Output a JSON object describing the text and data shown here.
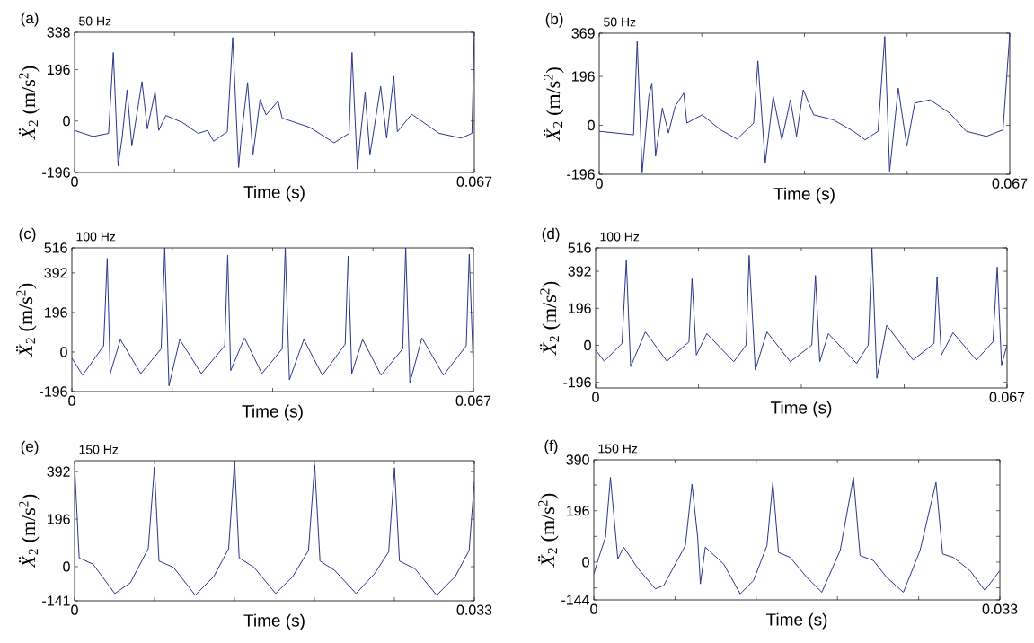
{
  "chart_data": [
    {
      "type": "line",
      "title": "(a)",
      "subtitle": "50 Hz",
      "xlabel": "Time (s)",
      "ylabel": "*Ẍ*$_{2}$  (m/s$^{2}$)",
      "color": "#27348b",
      "xlim": [
        0,
        0.067
      ],
      "ylim": [
        -196,
        338
      ],
      "xticks": [
        0,
        {
          "value": 0.01675,
          "label": null
        },
        {
          "value": 0.0335,
          "label": null
        },
        {
          "value": 0.05025,
          "label": null
        },
        0.067
      ],
      "yticks": [
        -196,
        0,
        196,
        338
      ],
      "x": [
        0,
        0.0031,
        0.0057,
        0.0065,
        0.0073,
        0.008,
        0.0088,
        0.0096,
        0.0113,
        0.0122,
        0.0135,
        0.0141,
        0.0153,
        0.0181,
        0.0207,
        0.0223,
        0.0233,
        0.0256,
        0.0265,
        0.0275,
        0.028,
        0.029,
        0.0299,
        0.0311,
        0.0321,
        0.0341,
        0.0348,
        0.0394,
        0.0435,
        0.046,
        0.0465,
        0.0474,
        0.0479,
        0.0487,
        0.0495,
        0.0513,
        0.0523,
        0.0535,
        0.0541,
        0.0565,
        0.0611,
        0.0648,
        0.0666,
        0.067
      ],
      "values": [
        -36,
        -59,
        -47,
        261,
        -171,
        -59,
        118,
        -95,
        150,
        -30,
        112,
        -36,
        21,
        -6,
        -47,
        -36,
        -77,
        -41,
        318,
        -177,
        -47,
        147,
        -130,
        82,
        23,
        76,
        11,
        -24,
        -83,
        -47,
        261,
        -183,
        -59,
        108,
        -130,
        132,
        -65,
        171,
        -41,
        26,
        -47,
        -65,
        -47,
        336
      ]
    },
    {
      "type": "line",
      "title": "(b)",
      "subtitle": "50 Hz",
      "xlabel": "Time (s)",
      "ylabel": "*Ẍ*$_{2}$  (m/s$^{2}$)",
      "color": "#27348b",
      "xlim": [
        0,
        0.067
      ],
      "ylim": [
        -196,
        369
      ],
      "xticks": [
        0,
        {
          "value": 0.01675,
          "label": null
        },
        {
          "value": 0.0335,
          "label": null
        },
        {
          "value": 0.05025,
          "label": null
        },
        0.067
      ],
      "yticks": [
        -196,
        0,
        196,
        369
      ],
      "x": [
        0,
        0.0056,
        0.0062,
        0.007,
        0.0081,
        0.0086,
        0.0092,
        0.0103,
        0.0113,
        0.0124,
        0.0138,
        0.0143,
        0.0168,
        0.0198,
        0.0225,
        0.0252,
        0.0259,
        0.0271,
        0.0284,
        0.0298,
        0.0312,
        0.0322,
        0.0333,
        0.035,
        0.0382,
        0.0415,
        0.0434,
        0.0455,
        0.0466,
        0.0474,
        0.0488,
        0.0502,
        0.0515,
        0.054,
        0.0572,
        0.0599,
        0.0632,
        0.0659,
        0.067
      ],
      "values": [
        -24,
        -38,
        336,
        -191,
        116,
        169,
        -124,
        69,
        -31,
        76,
        129,
        9,
        42,
        -18,
        -55,
        9,
        258,
        -151,
        116,
        -58,
        102,
        -44,
        142,
        42,
        22,
        -24,
        -58,
        -24,
        356,
        -184,
        149,
        -84,
        89,
        102,
        49,
        -24,
        -44,
        -18,
        369
      ]
    },
    {
      "type": "line",
      "title": "(c)",
      "subtitle": "100 Hz",
      "xlabel": "Time (s)",
      "ylabel": "*Ẍ*$_{2}$  (m/s$^{2}$)",
      "color": "#27348b",
      "xlim": [
        0,
        0.067
      ],
      "ylim": [
        -196,
        516
      ],
      "xticks": [
        0,
        {
          "value": 0.01675,
          "label": null
        },
        {
          "value": 0.0335,
          "label": null
        },
        {
          "value": 0.05025,
          "label": null
        },
        0.067
      ],
      "yticks": [
        -196,
        0,
        196,
        392,
        516
      ],
      "x": [
        0,
        0.0018,
        0.0053,
        0.0059,
        0.0064,
        0.0081,
        0.0115,
        0.0149,
        0.0155,
        0.0162,
        0.018,
        0.0216,
        0.0255,
        0.026,
        0.0265,
        0.0288,
        0.0317,
        0.0351,
        0.0356,
        0.0363,
        0.0387,
        0.0418,
        0.0456,
        0.0461,
        0.0467,
        0.0485,
        0.0516,
        0.0552,
        0.0557,
        0.0564,
        0.0584,
        0.062,
        0.0658,
        0.0663,
        0.067
      ],
      "values": [
        -30,
        -115,
        31,
        464,
        -107,
        62,
        -107,
        16,
        516,
        -168,
        62,
        -107,
        31,
        479,
        -92,
        70,
        -107,
        16,
        516,
        -138,
        62,
        -115,
        39,
        476,
        -107,
        62,
        -115,
        16,
        516,
        -153,
        70,
        -115,
        31,
        484,
        -92
      ]
    },
    {
      "type": "line",
      "title": "(d)",
      "subtitle": "100 Hz",
      "xlabel": "Time (s)",
      "ylabel": "*Ẍ*$_{2}$  (m/s$^{2}$)",
      "color": "#27348b",
      "xlim": [
        0,
        0.067
      ],
      "ylim": [
        -226,
        516
      ],
      "xticks": [
        0,
        {
          "value": 0.01675,
          "label": null
        },
        {
          "value": 0.0335,
          "label": null
        },
        {
          "value": 0.05025,
          "label": null
        },
        0.067
      ],
      "yticks": [
        -196,
        0,
        196,
        392,
        516
      ],
      "x": [
        0,
        0.0014,
        0.0043,
        0.005,
        0.0057,
        0.0081,
        0.0116,
        0.0152,
        0.0157,
        0.0164,
        0.0181,
        0.0225,
        0.0245,
        0.025,
        0.026,
        0.0279,
        0.0317,
        0.0352,
        0.0358,
        0.0365,
        0.0379,
        0.0425,
        0.0444,
        0.045,
        0.0458,
        0.0474,
        0.0517,
        0.0551,
        0.0556,
        0.0563,
        0.0582,
        0.062,
        0.0647,
        0.0654,
        0.0661,
        0.067
      ],
      "values": [
        -25,
        -84,
        10,
        449,
        -113,
        71,
        -84,
        18,
        352,
        -52,
        62,
        -87,
        1,
        476,
        -131,
        71,
        -87,
        1,
        370,
        -87,
        62,
        -96,
        1,
        516,
        -175,
        106,
        -78,
        10,
        361,
        -52,
        67,
        -78,
        18,
        414,
        -105,
        1
      ]
    },
    {
      "type": "line",
      "title": "(e)",
      "subtitle": "150 Hz",
      "xlabel": "Time (s)",
      "ylabel": "*Ẍ*$_{2}$  (m/s$^{2}$)",
      "color": "#27348b",
      "xlim": [
        0,
        0.033
      ],
      "ylim": [
        -141,
        437
      ],
      "xticks": [
        0,
        {
          "value": 0.0066,
          "label": null
        },
        {
          "value": 0.0132,
          "label": null
        },
        {
          "value": 0.0198,
          "label": null
        },
        {
          "value": 0.0264,
          "label": null
        },
        0.033
      ],
      "yticks": [
        -141,
        0,
        196,
        392
      ],
      "x": [
        0,
        0.00038,
        0.00153,
        0.00332,
        0.0046,
        0.00608,
        0.00659,
        0.00697,
        0.00817,
        0.00996,
        0.01149,
        0.01272,
        0.01321,
        0.01359,
        0.01481,
        0.0166,
        0.01801,
        0.01931,
        0.01982,
        0.02026,
        0.02146,
        0.02324,
        0.02478,
        0.02593,
        0.02641,
        0.02682,
        0.0281,
        0.02989,
        0.03142,
        0.03257,
        0.033
      ],
      "values": [
        420,
        36,
        10,
        -111,
        -67,
        74,
        410,
        23,
        -3,
        -118,
        -41,
        74,
        437,
        36,
        -3,
        -111,
        -41,
        67,
        420,
        23,
        -15,
        -111,
        -28,
        61,
        408,
        23,
        -9,
        -118,
        -41,
        67,
        350
      ]
    },
    {
      "type": "line",
      "title": "(f)",
      "subtitle": "150 Hz",
      "xlabel": "Time (s)",
      "ylabel": "*Ẍ*$_{2}$  (m/s$^{2}$)",
      "color": "#27348b",
      "xlim": [
        0,
        0.033
      ],
      "ylim": [
        -144,
        390
      ],
      "xticks": [
        0,
        {
          "value": 0.0066,
          "label": null
        },
        {
          "value": 0.0132,
          "label": null
        },
        {
          "value": 0.0198,
          "label": null
        },
        {
          "value": 0.0264,
          "label": null
        },
        0.033
      ],
      "yticks": [
        -144,
        {
          "value": -98,
          "label": null
        },
        0,
        {
          "value": 98,
          "label": null
        },
        196,
        {
          "value": 294,
          "label": null
        },
        390
      ],
      "x": [
        0,
        0.00041,
        0.00095,
        0.00135,
        0.00195,
        0.00243,
        0.00352,
        0.005,
        0.00568,
        0.00744,
        0.00798,
        0.00844,
        0.00866,
        0.00906,
        0.01055,
        0.0119,
        0.01298,
        0.01407,
        0.01455,
        0.01501,
        0.01596,
        0.01731,
        0.01853,
        0.02002,
        0.0211,
        0.02164,
        0.02272,
        0.0238,
        0.02516,
        0.02651,
        0.02781,
        0.02835,
        0.02921,
        0.03057,
        0.03178,
        0.033
      ],
      "values": [
        -45,
        18,
        95,
        323,
        12,
        57,
        -20,
        -102,
        -89,
        63,
        297,
        95,
        -83,
        57,
        -7,
        -121,
        -70,
        63,
        304,
        37,
        18,
        -58,
        -115,
        44,
        323,
        25,
        6,
        -58,
        -115,
        44,
        304,
        31,
        18,
        -32,
        -108,
        -32
      ]
    }
  ]
}
